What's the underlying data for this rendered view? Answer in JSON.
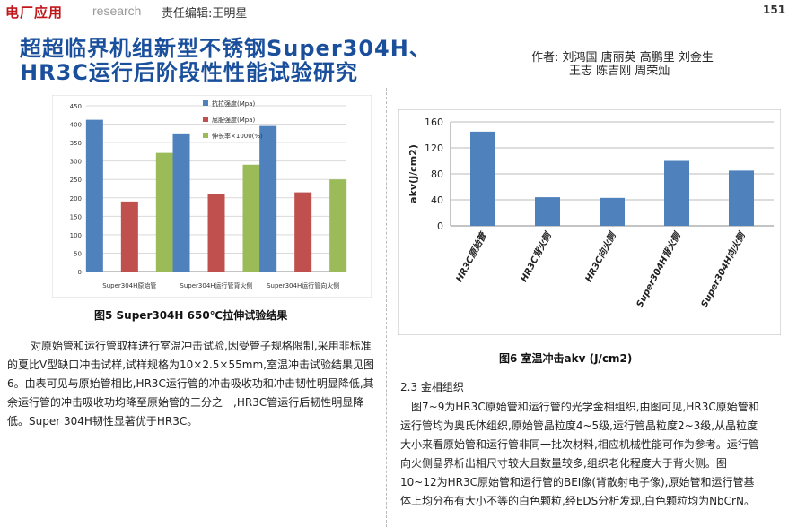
{
  "header": {
    "section": "电厂应用",
    "subsection": "research",
    "editor": "责任编辑:王明星",
    "page_number": "151"
  },
  "article": {
    "title_line1": "超超临界机组新型不锈钢Super304H、",
    "title_line2": "HR3C运行后阶段性性能试验研究",
    "authors_line1": "作者: 刘鸿国 唐丽英 高鹏里 刘金生",
    "authors_line2": "王志 陈吉刚 周荣灿"
  },
  "figure5": {
    "caption": "图5   Super304H 650℃拉伸试验结果"
  },
  "figure6": {
    "caption": "图6   室温冲击akv (J/cm2)"
  },
  "body": {
    "left_para": "对原始管和运行管取样进行室温冲击试验,因受管子规格限制,采用非标准的夏比V型缺口冲击试样,试样规格为10×2.5×55mm,室温冲击试验结果见图6。由表可见与原始管相比,HR3C运行管的冲击吸收功和冲击韧性明显降低,其余运行管的冲击吸收功均降至原始管的三分之一,HR3C管运行后韧性明显降低。Super 304H韧性显著优于HR3C。",
    "section_heading": "2.3 金相组织",
    "right_para": "图7~9为HR3C原始管和运行管的光学金相组织,由图可见,HR3C原始管和运行管均为奥氏体组织,原始管晶粒度4~5级,运行管晶粒度2~3级,从晶粒度大小来看原始管和运行管非同一批次材料,相应机械性能可作为参考。运行管向火侧晶界析出相尺寸较大且数量较多,组织老化程度大于背火侧。图10~12为HR3C原始管和运行管的BEI像(背散射电子像),原始管和运行管基体上均分布有大小不等的白色颗粒,经EDS分析发现,白色颗粒均为NbCrN。"
  },
  "chart_data": [
    {
      "type": "bar",
      "categories": [
        "Super304H原始管",
        "Super304H运行管背火侧",
        "Super304H运行管向火侧"
      ],
      "series": [
        {
          "name": "抗拉强度(Mpa)",
          "values": [
            412,
            375,
            395
          ],
          "color": "#4f81bd"
        },
        {
          "name": "屈服强度(Mpa)",
          "values": [
            190,
            210,
            215
          ],
          "color": "#c0504d"
        },
        {
          "name": "伸长率×1000(%)",
          "values": [
            322,
            290,
            250
          ],
          "color": "#9bbb59"
        }
      ],
      "yticks": [
        0,
        50,
        100,
        150,
        200,
        250,
        300,
        350,
        400,
        450
      ],
      "ylim": [
        0,
        450
      ],
      "grid": true,
      "legend": "top-right"
    },
    {
      "type": "bar",
      "categories": [
        "HR3C原始管",
        "HR3C背火侧",
        "HR3C向火侧",
        "Super304H背火侧",
        "Super304H向火侧"
      ],
      "series": [
        {
          "values": [
            145,
            44,
            43,
            100,
            85
          ],
          "color": "#4f81bd"
        }
      ],
      "ylabel": "akv(J/cm2)",
      "yticks": [
        0,
        40,
        80,
        120,
        160
      ],
      "ylim": [
        0,
        160
      ],
      "grid": true
    }
  ]
}
